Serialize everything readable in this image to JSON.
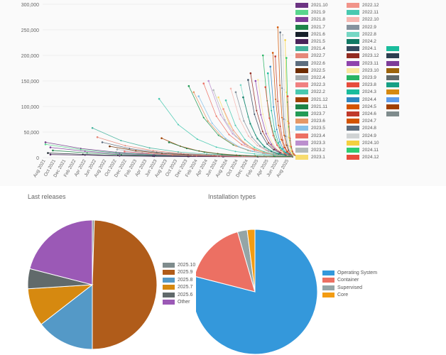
{
  "top_chart": {
    "y_ticks": [
      "300,000",
      "250,000",
      "200,000",
      "150,000",
      "100,000",
      "50,000",
      "0"
    ],
    "x_ticks": [
      "Aug 2021",
      "Oct 2021",
      "Dec 2021",
      "Feb 2022",
      "Apr 2022",
      "Jun 2022",
      "Aug 2022",
      "Oct 2022",
      "Dec 2022",
      "Feb 2023",
      "Apr 2023",
      "Jun 2023",
      "Aug 2023",
      "Oct 2023",
      "Dec 2023",
      "Feb 2024",
      "Apr 2024",
      "Jun 2024",
      "Aug 2024",
      "Oct 2024",
      "Dec 2024",
      "Feb 2025",
      "Apr 2025",
      "Jun 2025",
      "Aug 2025"
    ],
    "legend": [
      {
        "label": "2021.10",
        "color": "#6c3483"
      },
      {
        "label": "2021.9",
        "color": "#58d68d"
      },
      {
        "label": "2021.8",
        "color": "#7d3c98"
      },
      {
        "label": "2021.7",
        "color": "#1e8449"
      },
      {
        "label": "2021.6",
        "color": "#17202a"
      },
      {
        "label": "2021.5",
        "color": "#4a235a"
      },
      {
        "label": "2021.4",
        "color": "#45b39d"
      },
      {
        "label": "2022.7",
        "color": "#e6887a"
      },
      {
        "label": "2022.6",
        "color": "#5d6d7e"
      },
      {
        "label": "2022.5",
        "color": "#6e2c00"
      },
      {
        "label": "2022.4",
        "color": "#a6acaf"
      },
      {
        "label": "2022.3",
        "color": "#f08080"
      },
      {
        "label": "2022.2",
        "color": "#48c9b0"
      },
      {
        "label": "2021.12",
        "color": "#a04000"
      },
      {
        "label": "2021.11",
        "color": "#1d8348"
      },
      {
        "label": "2023.7",
        "color": "#239b56"
      },
      {
        "label": "2023.6",
        "color": "#e59866"
      },
      {
        "label": "2023.5",
        "color": "#85c1e9"
      },
      {
        "label": "2023.4",
        "color": "#ec7063"
      },
      {
        "label": "2023.3",
        "color": "#bb8fce"
      },
      {
        "label": "2023.2",
        "color": "#b2babb"
      },
      {
        "label": "2023.1",
        "color": "#f7dc6f"
      },
      {
        "label": "2022.12",
        "color": "#f1948a"
      },
      {
        "label": "2022.11",
        "color": "#48c9b0"
      },
      {
        "label": "2022.10",
        "color": "#f5b7b1"
      },
      {
        "label": "2022.9",
        "color": "#85929e"
      },
      {
        "label": "2022.8",
        "color": "#76d7c4"
      },
      {
        "label": "2024.2",
        "color": "#117a65"
      },
      {
        "label": "2024.1",
        "color": "#34495e"
      },
      {
        "label": "2023.12",
        "color": "#922b21"
      },
      {
        "label": "2023.11",
        "color": "#8e44ad"
      },
      {
        "label": "2023.10",
        "color": "#f9e79f"
      },
      {
        "label": "2023.9",
        "color": "#28b463"
      },
      {
        "label": "2023.8",
        "color": "#e74c3c"
      },
      {
        "label": "2024.3",
        "color": "#1abc9c"
      },
      {
        "label": "2024.4",
        "color": "#2e86c1"
      },
      {
        "label": "2024.5",
        "color": "#d35400"
      },
      {
        "label": "2024.6",
        "color": "#c0392b"
      },
      {
        "label": "2024.7",
        "color": "#d35400"
      },
      {
        "label": "2024.8",
        "color": "#5d6d7e"
      },
      {
        "label": "2024.9",
        "color": "#d0d3d4"
      },
      {
        "label": "2024.10",
        "color": "#f4d03f"
      },
      {
        "label": "2024.11",
        "color": "#2ecc71"
      },
      {
        "label": "2024.12",
        "color": "#e74c3c"
      }
    ],
    "legend_extra_colors": [
      "#1abc9c",
      "#2c3e50",
      "#7d3c98",
      "#9c640c",
      "#616a6b",
      "#16a085",
      "#d68910",
      "#5d9cec",
      "#a04000",
      "#7f8c8d"
    ]
  },
  "last_releases": {
    "title": "Last releases",
    "chart_data": {
      "type": "pie",
      "title": "Last releases",
      "labels": [
        "2025.10",
        "2025.9",
        "2025.8",
        "2025.7",
        "2025.6",
        "Other"
      ],
      "values": [
        0.5,
        49.5,
        14.5,
        9.5,
        5.0,
        21.0
      ],
      "colors": [
        "#7f8c8d",
        "#b05c1a",
        "#5499c7",
        "#d68910",
        "#616a6b",
        "#9b59b6"
      ]
    }
  },
  "installation_types": {
    "title": "Installation types",
    "chart_data": {
      "type": "pie",
      "title": "Installation types",
      "labels": [
        "Operating System",
        "Container",
        "Supervised",
        "Core"
      ],
      "values": [
        79.0,
        16.5,
        2.5,
        2.0
      ],
      "colors": [
        "#3498db",
        "#ec7063",
        "#95a5a6",
        "#f39c12"
      ]
    }
  }
}
